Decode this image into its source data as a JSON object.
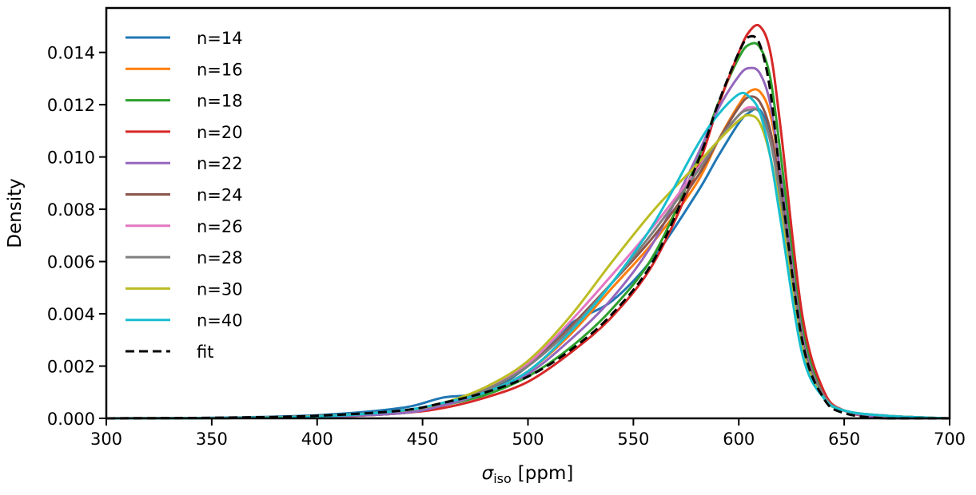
{
  "chart_data": {
    "type": "line",
    "title": "",
    "xlabel": "σ",
    "xlabel_sub": "iso",
    "xlabel_unit": "[ppm]",
    "ylabel": "Density",
    "xlim": [
      300,
      700
    ],
    "ylim": [
      0,
      0.0157
    ],
    "xticks": [
      300,
      350,
      400,
      450,
      500,
      550,
      600,
      650,
      700
    ],
    "xtick_labels": [
      "300",
      "350",
      "400",
      "450",
      "500",
      "550",
      "600",
      "650",
      "700"
    ],
    "yticks": [
      0,
      0.002,
      0.004,
      0.006,
      0.008,
      0.01,
      0.012,
      0.014
    ],
    "ytick_labels": [
      "0.000",
      "0.002",
      "0.004",
      "0.006",
      "0.008",
      "0.010",
      "0.012",
      "0.014"
    ],
    "grid": false,
    "legend_position": "top-left",
    "x": [
      300,
      350,
      400,
      440,
      460,
      480,
      500,
      520,
      540,
      560,
      580,
      590,
      600,
      605,
      610,
      615,
      620,
      630,
      640,
      650,
      670,
      700
    ],
    "series": [
      {
        "name": "n=14",
        "color": "#1f77b4",
        "dash": false,
        "values": [
          0,
          2e-05,
          0.00012,
          0.0004,
          0.0008,
          0.001,
          0.002,
          0.0036,
          0.0045,
          0.0062,
          0.0086,
          0.01,
          0.0113,
          0.0117,
          0.0118,
          0.0108,
          0.0086,
          0.0031,
          0.0009,
          0.0003,
          0.0001,
          0
        ]
      },
      {
        "name": "n=16",
        "color": "#ff7f0e",
        "dash": false,
        "values": [
          0,
          1e-05,
          6e-05,
          0.0002,
          0.0005,
          0.001,
          0.0018,
          0.0032,
          0.005,
          0.0068,
          0.009,
          0.0106,
          0.012,
          0.0125,
          0.0125,
          0.0116,
          0.0092,
          0.0033,
          0.001,
          0.0003,
          0.0001,
          0
        ]
      },
      {
        "name": "n=18",
        "color": "#2ca02c",
        "dash": false,
        "values": [
          0,
          1e-05,
          6e-05,
          0.0002,
          0.0005,
          0.0009,
          0.0016,
          0.0027,
          0.0042,
          0.0063,
          0.0098,
          0.012,
          0.0138,
          0.0143,
          0.0142,
          0.013,
          0.01,
          0.0035,
          0.001,
          0.0003,
          0,
          0
        ]
      },
      {
        "name": "n=20",
        "color": "#d62728",
        "dash": false,
        "values": [
          0,
          1e-05,
          5e-05,
          0.0002,
          0.0004,
          0.0008,
          0.0014,
          0.0025,
          0.0039,
          0.006,
          0.0095,
          0.0119,
          0.014,
          0.0148,
          0.015,
          0.014,
          0.011,
          0.004,
          0.0011,
          0.0003,
          0,
          0
        ]
      },
      {
        "name": "n=22",
        "color": "#9467bd",
        "dash": false,
        "values": [
          0,
          1e-05,
          6e-05,
          0.0002,
          0.0005,
          0.001,
          0.0017,
          0.003,
          0.0046,
          0.0068,
          0.01,
          0.0118,
          0.0131,
          0.0134,
          0.0132,
          0.012,
          0.0092,
          0.0032,
          0.0009,
          0.0003,
          0,
          0
        ]
      },
      {
        "name": "n=24",
        "color": "#8c564b",
        "dash": false,
        "values": [
          0,
          1e-05,
          8e-05,
          0.0003,
          0.0006,
          0.0011,
          0.002,
          0.0035,
          0.0052,
          0.007,
          0.0092,
          0.0106,
          0.0119,
          0.0123,
          0.0121,
          0.011,
          0.0086,
          0.003,
          0.0009,
          0.0003,
          0.0001,
          0
        ]
      },
      {
        "name": "n=26",
        "color": "#e377c2",
        "dash": false,
        "values": [
          0,
          1e-05,
          8e-05,
          0.0003,
          0.0006,
          0.0011,
          0.0021,
          0.0037,
          0.0055,
          0.0074,
          0.0095,
          0.0106,
          0.0116,
          0.0119,
          0.0117,
          0.0106,
          0.0083,
          0.0029,
          0.0009,
          0.0003,
          0.0001,
          0
        ]
      },
      {
        "name": "n=28",
        "color": "#7f7f7f",
        "dash": false,
        "values": [
          0,
          1e-05,
          8e-05,
          0.0003,
          0.0006,
          0.0011,
          0.002,
          0.0034,
          0.0052,
          0.0072,
          0.0094,
          0.0106,
          0.0116,
          0.0118,
          0.0117,
          0.0106,
          0.0083,
          0.0029,
          0.0009,
          0.0003,
          0.0001,
          0
        ]
      },
      {
        "name": "n=30",
        "color": "#bcbd22",
        "dash": false,
        "values": [
          0,
          1e-05,
          8e-05,
          0.0003,
          0.0006,
          0.0012,
          0.0022,
          0.0039,
          0.006,
          0.008,
          0.0097,
          0.0106,
          0.0114,
          0.0116,
          0.0113,
          0.01,
          0.0078,
          0.0027,
          0.0008,
          0.0003,
          0.0001,
          0
        ]
      },
      {
        "name": "n=40",
        "color": "#17becf",
        "dash": false,
        "values": [
          0,
          1e-05,
          7e-05,
          0.0003,
          0.0006,
          0.001,
          0.0018,
          0.0033,
          0.0052,
          0.0075,
          0.0104,
          0.0116,
          0.0124,
          0.0123,
          0.0117,
          0.01,
          0.0075,
          0.0025,
          0.0008,
          0.0003,
          0.0001,
          0
        ]
      },
      {
        "name": "fit",
        "color": "#000000",
        "dash": true,
        "values": [
          0,
          2e-05,
          0.0001,
          0.0003,
          0.0006,
          0.001,
          0.0016,
          0.0026,
          0.004,
          0.0061,
          0.0097,
          0.012,
          0.014,
          0.0146,
          0.0143,
          0.0125,
          0.009,
          0.003,
          0.0008,
          0.0002,
          0,
          0
        ]
      }
    ]
  }
}
